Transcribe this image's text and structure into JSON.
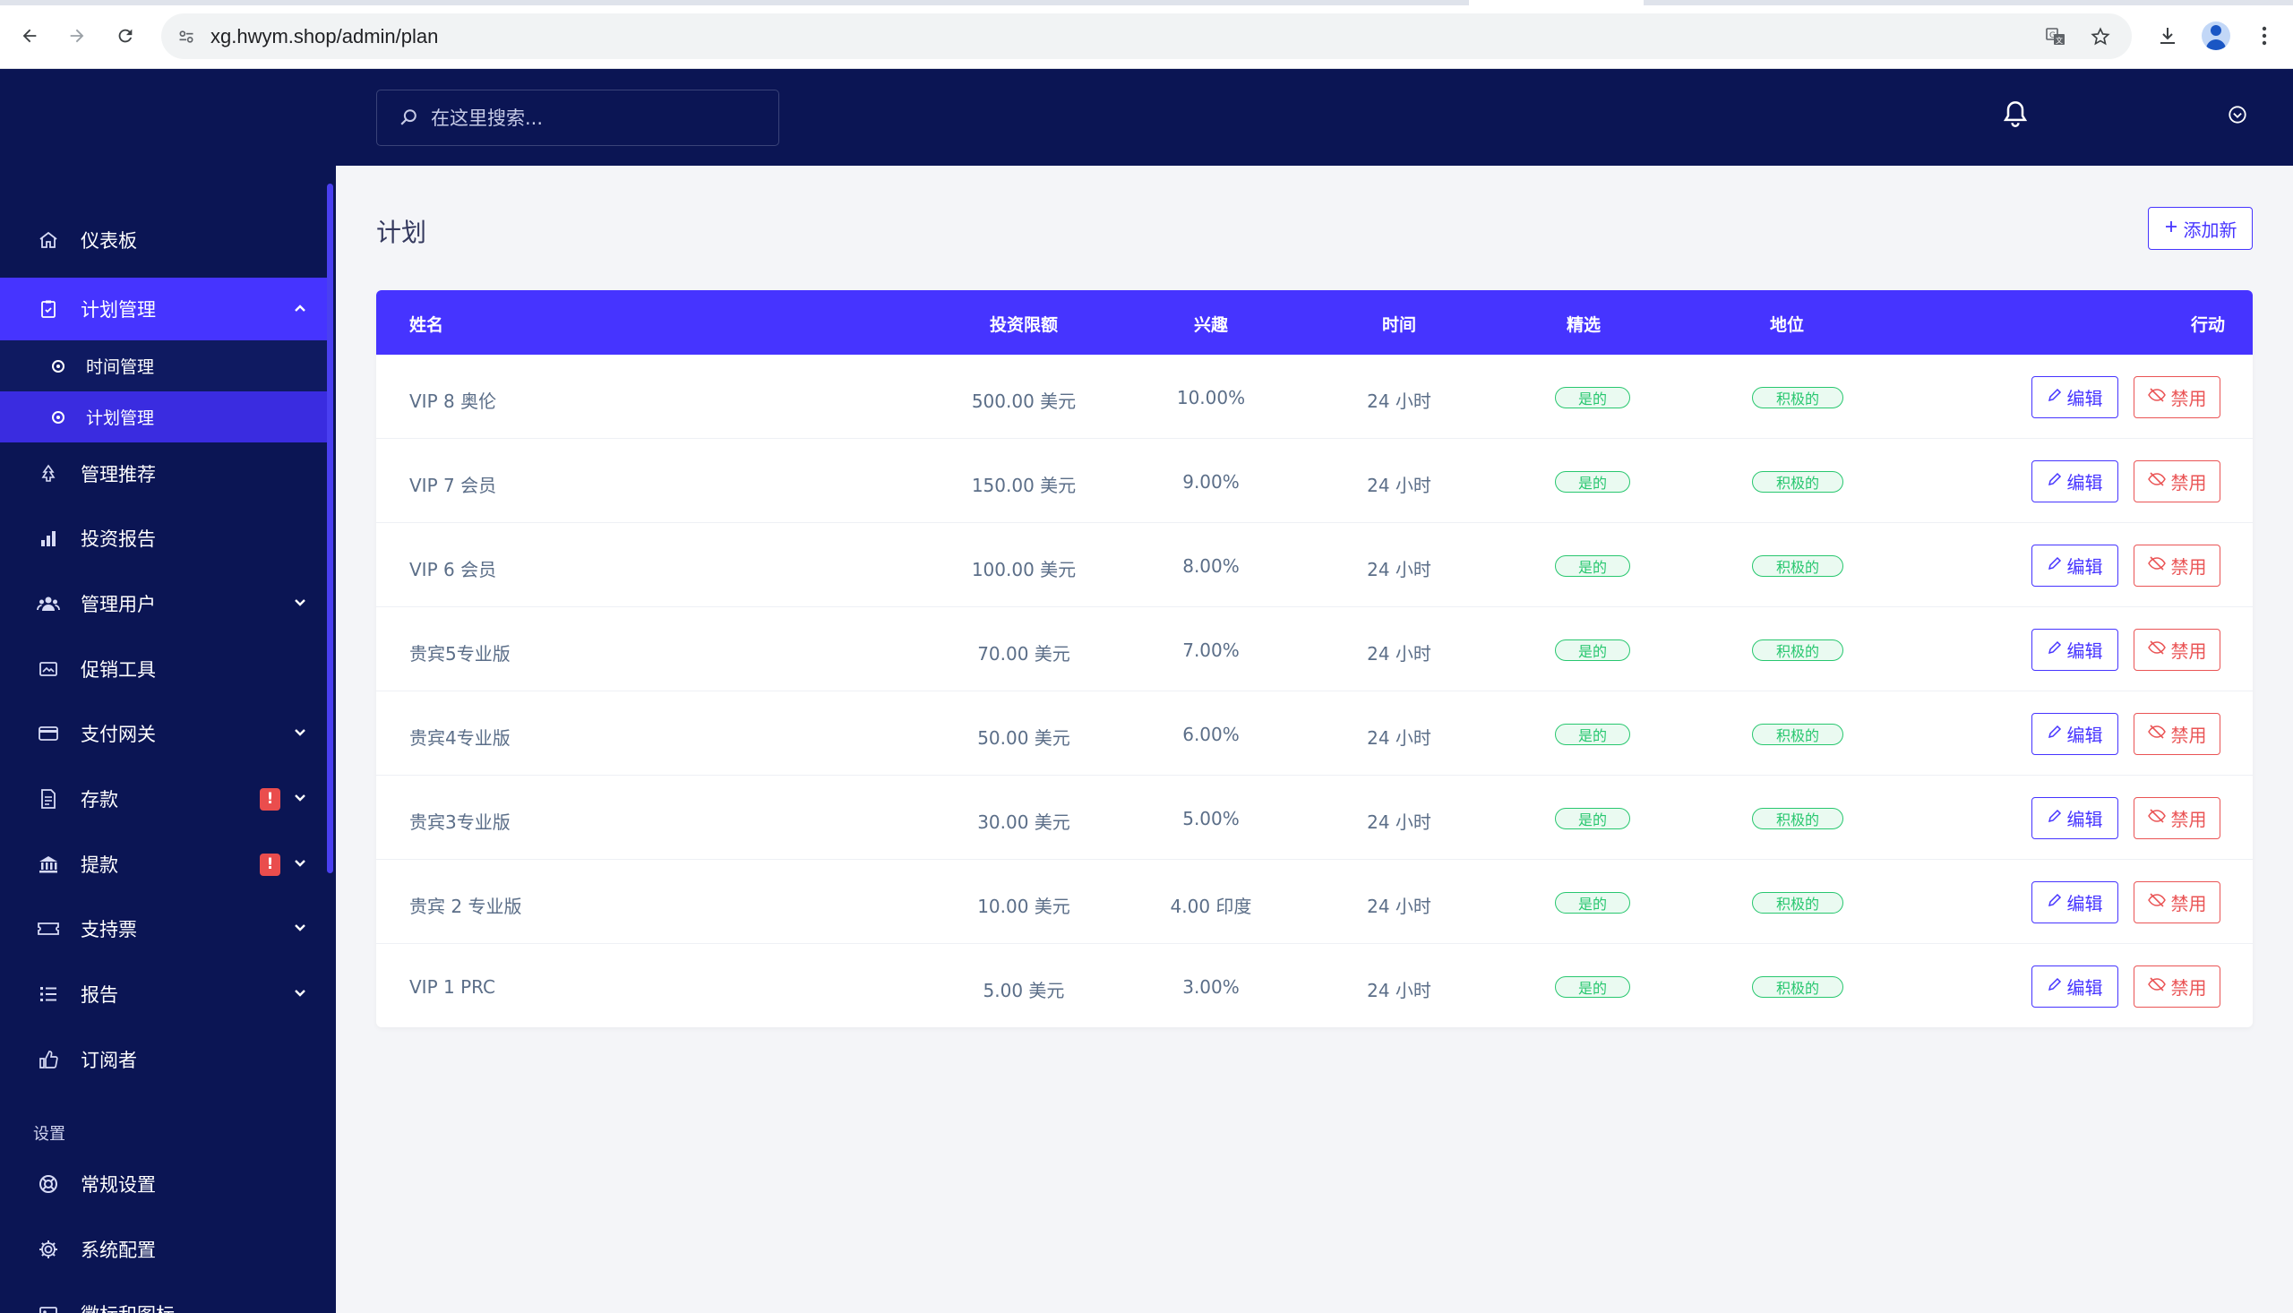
{
  "browser": {
    "url": "xg.hwym.shop/admin/plan"
  },
  "topbar": {
    "search_placeholder": "在这里搜索..."
  },
  "sidebar": {
    "items": [
      {
        "label": "仪表板",
        "icon": "home-icon"
      },
      {
        "label": "计划管理",
        "icon": "clipboard-icon"
      },
      {
        "label": "时间管理",
        "icon": "circle-dot-icon"
      },
      {
        "label": "计划管理",
        "icon": "circle-dot-icon"
      },
      {
        "label": "管理推荐",
        "icon": "tree-icon"
      },
      {
        "label": "投资报告",
        "icon": "bar-chart-icon"
      },
      {
        "label": "管理用户",
        "icon": "users-icon"
      },
      {
        "label": "促销工具",
        "icon": "image-icon"
      },
      {
        "label": "支付网关",
        "icon": "credit-card-icon"
      },
      {
        "label": "存款",
        "icon": "file-invoice-icon",
        "badge": "!"
      },
      {
        "label": "提款",
        "icon": "bank-icon",
        "badge": "!"
      },
      {
        "label": "支持票",
        "icon": "ticket-icon"
      },
      {
        "label": "报告",
        "icon": "list-icon"
      },
      {
        "label": "订阅者",
        "icon": "thumbs-up-icon"
      }
    ],
    "settings_heading": "设置",
    "settings_items": [
      {
        "label": "常规设置",
        "icon": "life-ring-icon"
      },
      {
        "label": "系统配置",
        "icon": "gear-icon"
      },
      {
        "label": "徽标和图标",
        "icon": "image-icon"
      }
    ]
  },
  "main": {
    "title": "计划",
    "add_label": "添加新",
    "columns": [
      "姓名",
      "投资限额",
      "兴趣",
      "时间",
      "精选",
      "地位",
      "行动"
    ],
    "rows": [
      {
        "name": "VIP 8 奥伦",
        "limit": "500.00 美元",
        "interest": "10.00%",
        "time": "24 小时",
        "featured": "是的",
        "status": "积极的"
      },
      {
        "name": "VIP 7 会员",
        "limit": "150.00 美元",
        "interest": "9.00%",
        "time": "24 小时",
        "featured": "是的",
        "status": "积极的"
      },
      {
        "name": "VIP 6 会员",
        "limit": "100.00 美元",
        "interest": "8.00%",
        "time": "24 小时",
        "featured": "是的",
        "status": "积极的"
      },
      {
        "name": "贵宾5专业版",
        "limit": "70.00 美元",
        "interest": "7.00%",
        "time": "24 小时",
        "featured": "是的",
        "status": "积极的"
      },
      {
        "name": "贵宾4专业版",
        "limit": "50.00 美元",
        "interest": "6.00%",
        "time": "24 小时",
        "featured": "是的",
        "status": "积极的"
      },
      {
        "name": "贵宾3专业版",
        "limit": "30.00 美元",
        "interest": "5.00%",
        "time": "24 小时",
        "featured": "是的",
        "status": "积极的"
      },
      {
        "name": "贵宾 2 专业版",
        "limit": "10.00 美元",
        "interest": "4.00 印度",
        "time": "24 小时",
        "featured": "是的",
        "status": "积极的"
      },
      {
        "name": "VIP 1 PRC",
        "limit": "5.00 美元",
        "interest": "3.00%",
        "time": "24 小时",
        "featured": "是的",
        "status": "积极的"
      }
    ],
    "edit_label": "编辑",
    "disable_label": "禁用"
  },
  "colors": {
    "sidebar_bg": "#0b1554",
    "accent": "#4634ff",
    "success": "#28c76f",
    "danger": "#ea5455"
  }
}
